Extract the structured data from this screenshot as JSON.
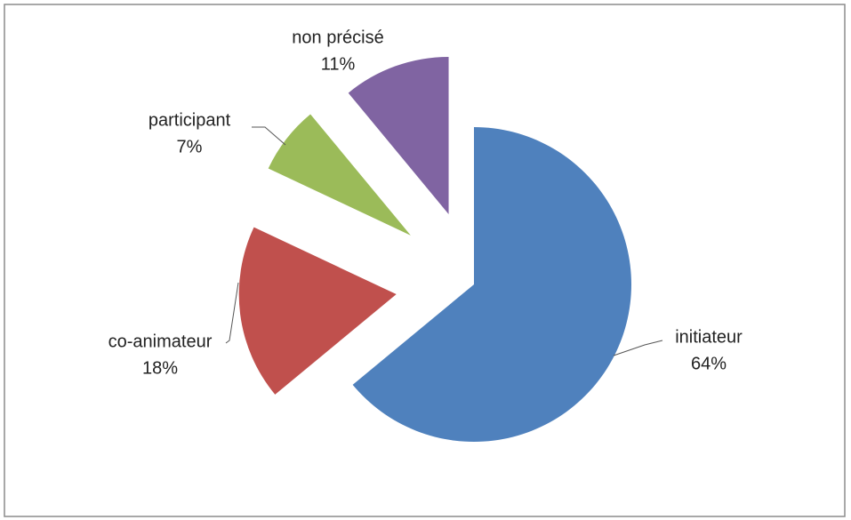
{
  "chart_data": {
    "type": "pie",
    "categories": [
      "initiateur",
      "co-animateur",
      "participant",
      "non précisé"
    ],
    "values": [
      64,
      18,
      7,
      11
    ],
    "value_labels": [
      "64%",
      "18%",
      "7%",
      "11%"
    ],
    "colors": [
      "#4f81bd",
      "#c0504d",
      "#9bbb59",
      "#8064a2"
    ]
  }
}
